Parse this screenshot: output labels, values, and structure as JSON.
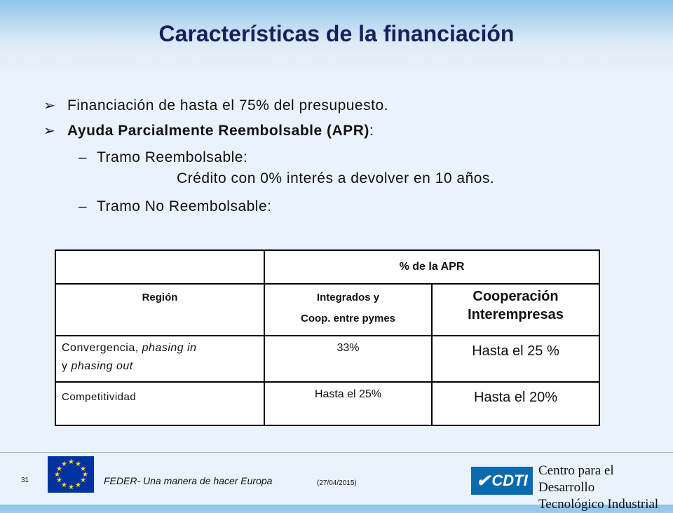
{
  "title": "Características de la financiación",
  "bullets": [
    {
      "text": "Financiación de hasta el 75% del presupuesto."
    },
    {
      "text_bold": "Ayuda Parcialmente Reembolsable (APR)",
      "text_tail": ":"
    }
  ],
  "sub_items": [
    {
      "dash": "–",
      "label": "Tramo Reembolsable:",
      "detail": "Crédito con 0% interés a devolver en 10 años."
    },
    {
      "dash": "–",
      "label": "Tramo No Reembolsable:"
    }
  ],
  "table": {
    "group_header": "% de la APR",
    "col_region": "Región",
    "col_integrated_line1": "Integrados y",
    "col_integrated_line2": "Coop. entre pymes",
    "col_coop_line1": "Cooperación",
    "col_coop_line2": "Interempresas",
    "rows": [
      {
        "region_plain": "Convergencia, ",
        "region_italic1": "phasing in",
        "region_mid": "y ",
        "region_italic2": "phasing out",
        "integrated": "33%",
        "coop": "Hasta el 25 %"
      },
      {
        "region": "Competitividad",
        "integrated": "Hasta el 25%",
        "coop": "Hasta el 20%"
      }
    ]
  },
  "footer": {
    "page_number": "31",
    "slogan": "FEDER- Una manera de hacer Europa",
    "date": "(27/04/2015)",
    "logo_text": "CDTI",
    "org_line1": "Centro para el Desarrollo",
    "org_line2": "Tecnológico Industrial",
    "eu_flag_icon": "eu-flag-icon"
  }
}
